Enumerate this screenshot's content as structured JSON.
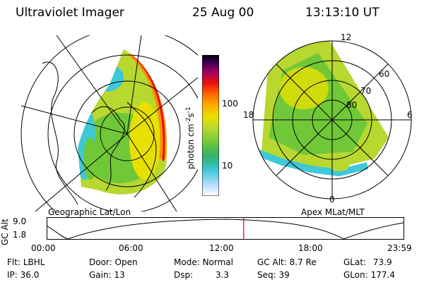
{
  "header": {
    "instrument": "Ultraviolet Imager",
    "date": "25 Aug 00",
    "time": "13:13:10 UT"
  },
  "colorbar": {
    "unit": "photon cm",
    "unit_exp1": "-2",
    "unit_mid": "s",
    "unit_exp2": "-1",
    "ticks": [
      "100",
      "10"
    ],
    "colors": [
      "#ffffff",
      "#b8dcff",
      "#3ec8d8",
      "#30b070",
      "#70c838",
      "#b8d830",
      "#e8e000",
      "#ffb000",
      "#ff6a00",
      "#e81010",
      "#a00060",
      "#300050",
      "#000000"
    ]
  },
  "left_panel": {
    "caption": "Geographic Lat/Lon"
  },
  "right_panel": {
    "caption": "Apex MLat/MLT",
    "mlt_labels": [
      "12",
      "18",
      "6",
      "0"
    ],
    "lat_labels": [
      "60",
      "70",
      "80"
    ]
  },
  "timeline": {
    "ylabel": "GC Alt",
    "yticks": [
      "9.0",
      "1.8"
    ],
    "xticks": [
      "00:00",
      "06:00",
      "12:00",
      "18:00",
      "23:59"
    ],
    "current_time_fraction": 0.551,
    "marker_color": "#e00000"
  },
  "info": {
    "flt_label": "Flt:",
    "flt_value": "LBHL",
    "ip_label": "IP:",
    "ip_value": "36.0",
    "door_label": "Door:",
    "door_value": "Open",
    "gain_label": "Gain:",
    "gain_value": "13",
    "mode_label": "Mode:",
    "mode_value": "Normal",
    "dsp_label": "Dsp:",
    "dsp_value": "3.3",
    "gcalt_label": "GC Alt:",
    "gcalt_value": "8.7 Re",
    "seq_label": "Seq:",
    "seq_value": "39",
    "glat_label": "GLat:",
    "glat_value": "73.9",
    "glon_label": "GLon:",
    "glon_value": "177.4"
  }
}
